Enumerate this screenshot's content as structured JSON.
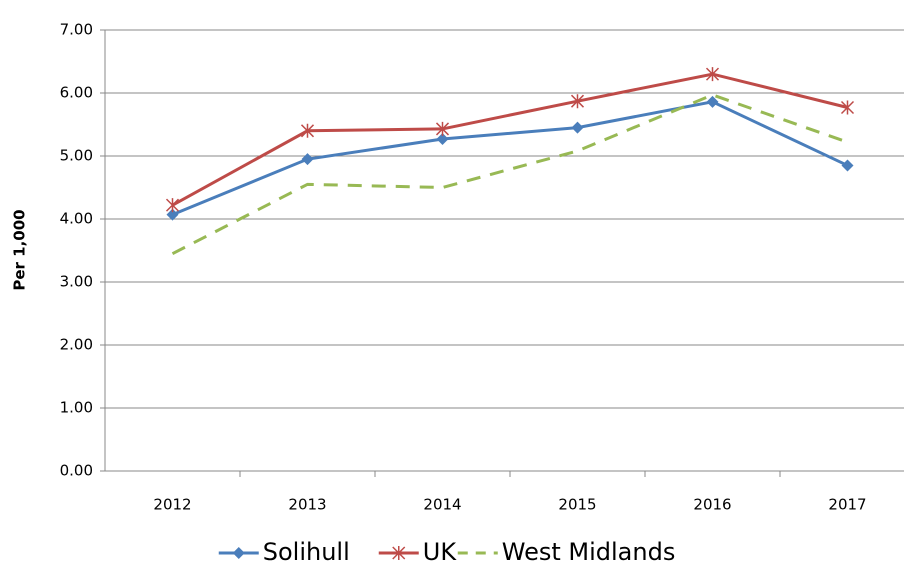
{
  "chart_data": {
    "type": "line",
    "y_label": "Per 1,000",
    "categories": [
      "2012",
      "2013",
      "2014",
      "2015",
      "2016",
      "2017"
    ],
    "series": [
      {
        "name": "Solihull",
        "color": "#4a7ebb",
        "marker": "diamond",
        "dash": false,
        "values": [
          4.07,
          4.95,
          5.27,
          5.45,
          5.86,
          4.85
        ]
      },
      {
        "name": "UK",
        "color": "#be4b48",
        "marker": "star",
        "dash": false,
        "values": [
          4.22,
          5.4,
          5.43,
          5.87,
          6.3,
          5.77
        ]
      },
      {
        "name": "West Midlands",
        "color": "#98b954",
        "marker": "none",
        "dash": true,
        "values": [
          3.45,
          4.55,
          4.5,
          5.08,
          5.97,
          5.22
        ]
      }
    ],
    "ylim": [
      0,
      7
    ],
    "yticks": [
      {
        "value": 0,
        "label": "0.00"
      },
      {
        "value": 1,
        "label": "1.00"
      },
      {
        "value": 2,
        "label": "2.00"
      },
      {
        "value": 3,
        "label": "3.00"
      },
      {
        "value": 4,
        "label": "4.00"
      },
      {
        "value": 5,
        "label": "5.00"
      },
      {
        "value": 6,
        "label": "6.00"
      },
      {
        "value": 7,
        "label": "7.00"
      }
    ],
    "grid": true,
    "legend": "bottom"
  }
}
